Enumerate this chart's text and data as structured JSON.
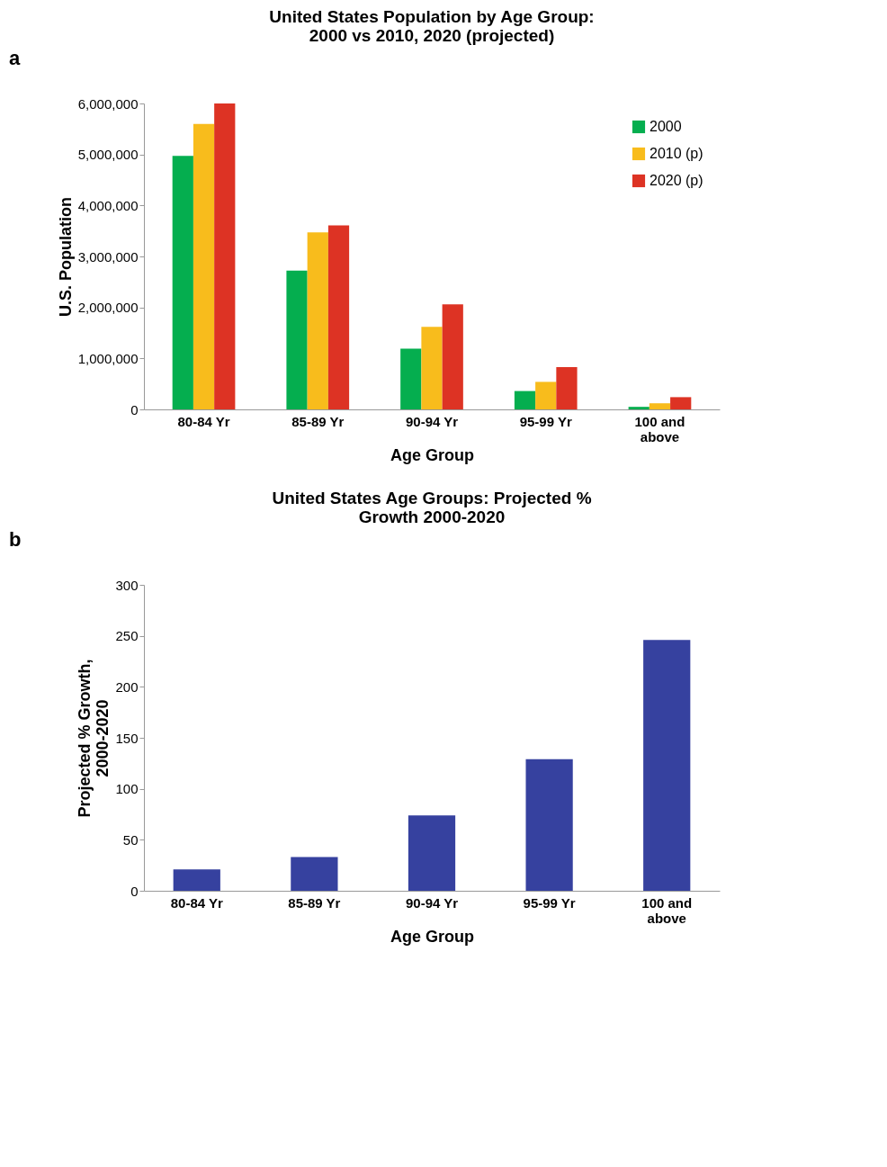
{
  "chart_data": [
    {
      "type": "bar",
      "title": "United States Population by Age Group: 2000 vs 2010, 2020 (projected)",
      "xlabel": "Age Group",
      "ylabel": "U.S. Population",
      "categories": [
        "80-84 Yr",
        "85-89 Yr",
        "90-94 Yr",
        "95-99 Yr",
        "100 and above"
      ],
      "series": [
        {
          "name": "2000",
          "color": "#05ae4f",
          "values": [
            4970000,
            2720000,
            1190000,
            360000,
            50000
          ]
        },
        {
          "name": "2010 (p)",
          "color": "#f8bc1c",
          "values": [
            5600000,
            3470000,
            1620000,
            540000,
            120000
          ]
        },
        {
          "name": "2020 (p)",
          "color": "#dd3324",
          "values": [
            6000000,
            3610000,
            2060000,
            830000,
            240000
          ]
        }
      ],
      "ylim": [
        0,
        6000000
      ],
      "yticks": [
        {
          "value": 0,
          "label": "0"
        },
        {
          "value": 1000000,
          "label": "1,000,000"
        },
        {
          "value": 2000000,
          "label": "2,000,000"
        },
        {
          "value": 3000000,
          "label": "3,000,000"
        },
        {
          "value": 4000000,
          "label": "4,000,000"
        },
        {
          "value": 5000000,
          "label": "5,000,000"
        },
        {
          "value": 6000000,
          "label": "6,000,000"
        }
      ],
      "legend": "top right",
      "grid": false,
      "annotations": [
        "a"
      ]
    },
    {
      "type": "bar",
      "title": "United States Age Groups: Projected % Growth 2000-2020",
      "xlabel": "Age Group",
      "ylabel": "Projected % Growth, 2000-2020",
      "categories": [
        "80-84 Yr",
        "85-89 Yr",
        "90-94 Yr",
        "95-99 Yr",
        "100 and above"
      ],
      "values": [
        21,
        33,
        74,
        129,
        246
      ],
      "color": "#36419f",
      "ylim": [
        0,
        300
      ],
      "yticks": [
        0,
        50,
        100,
        150,
        200,
        250,
        300
      ],
      "legend": false,
      "grid": false,
      "annotations": [
        "b"
      ]
    }
  ]
}
